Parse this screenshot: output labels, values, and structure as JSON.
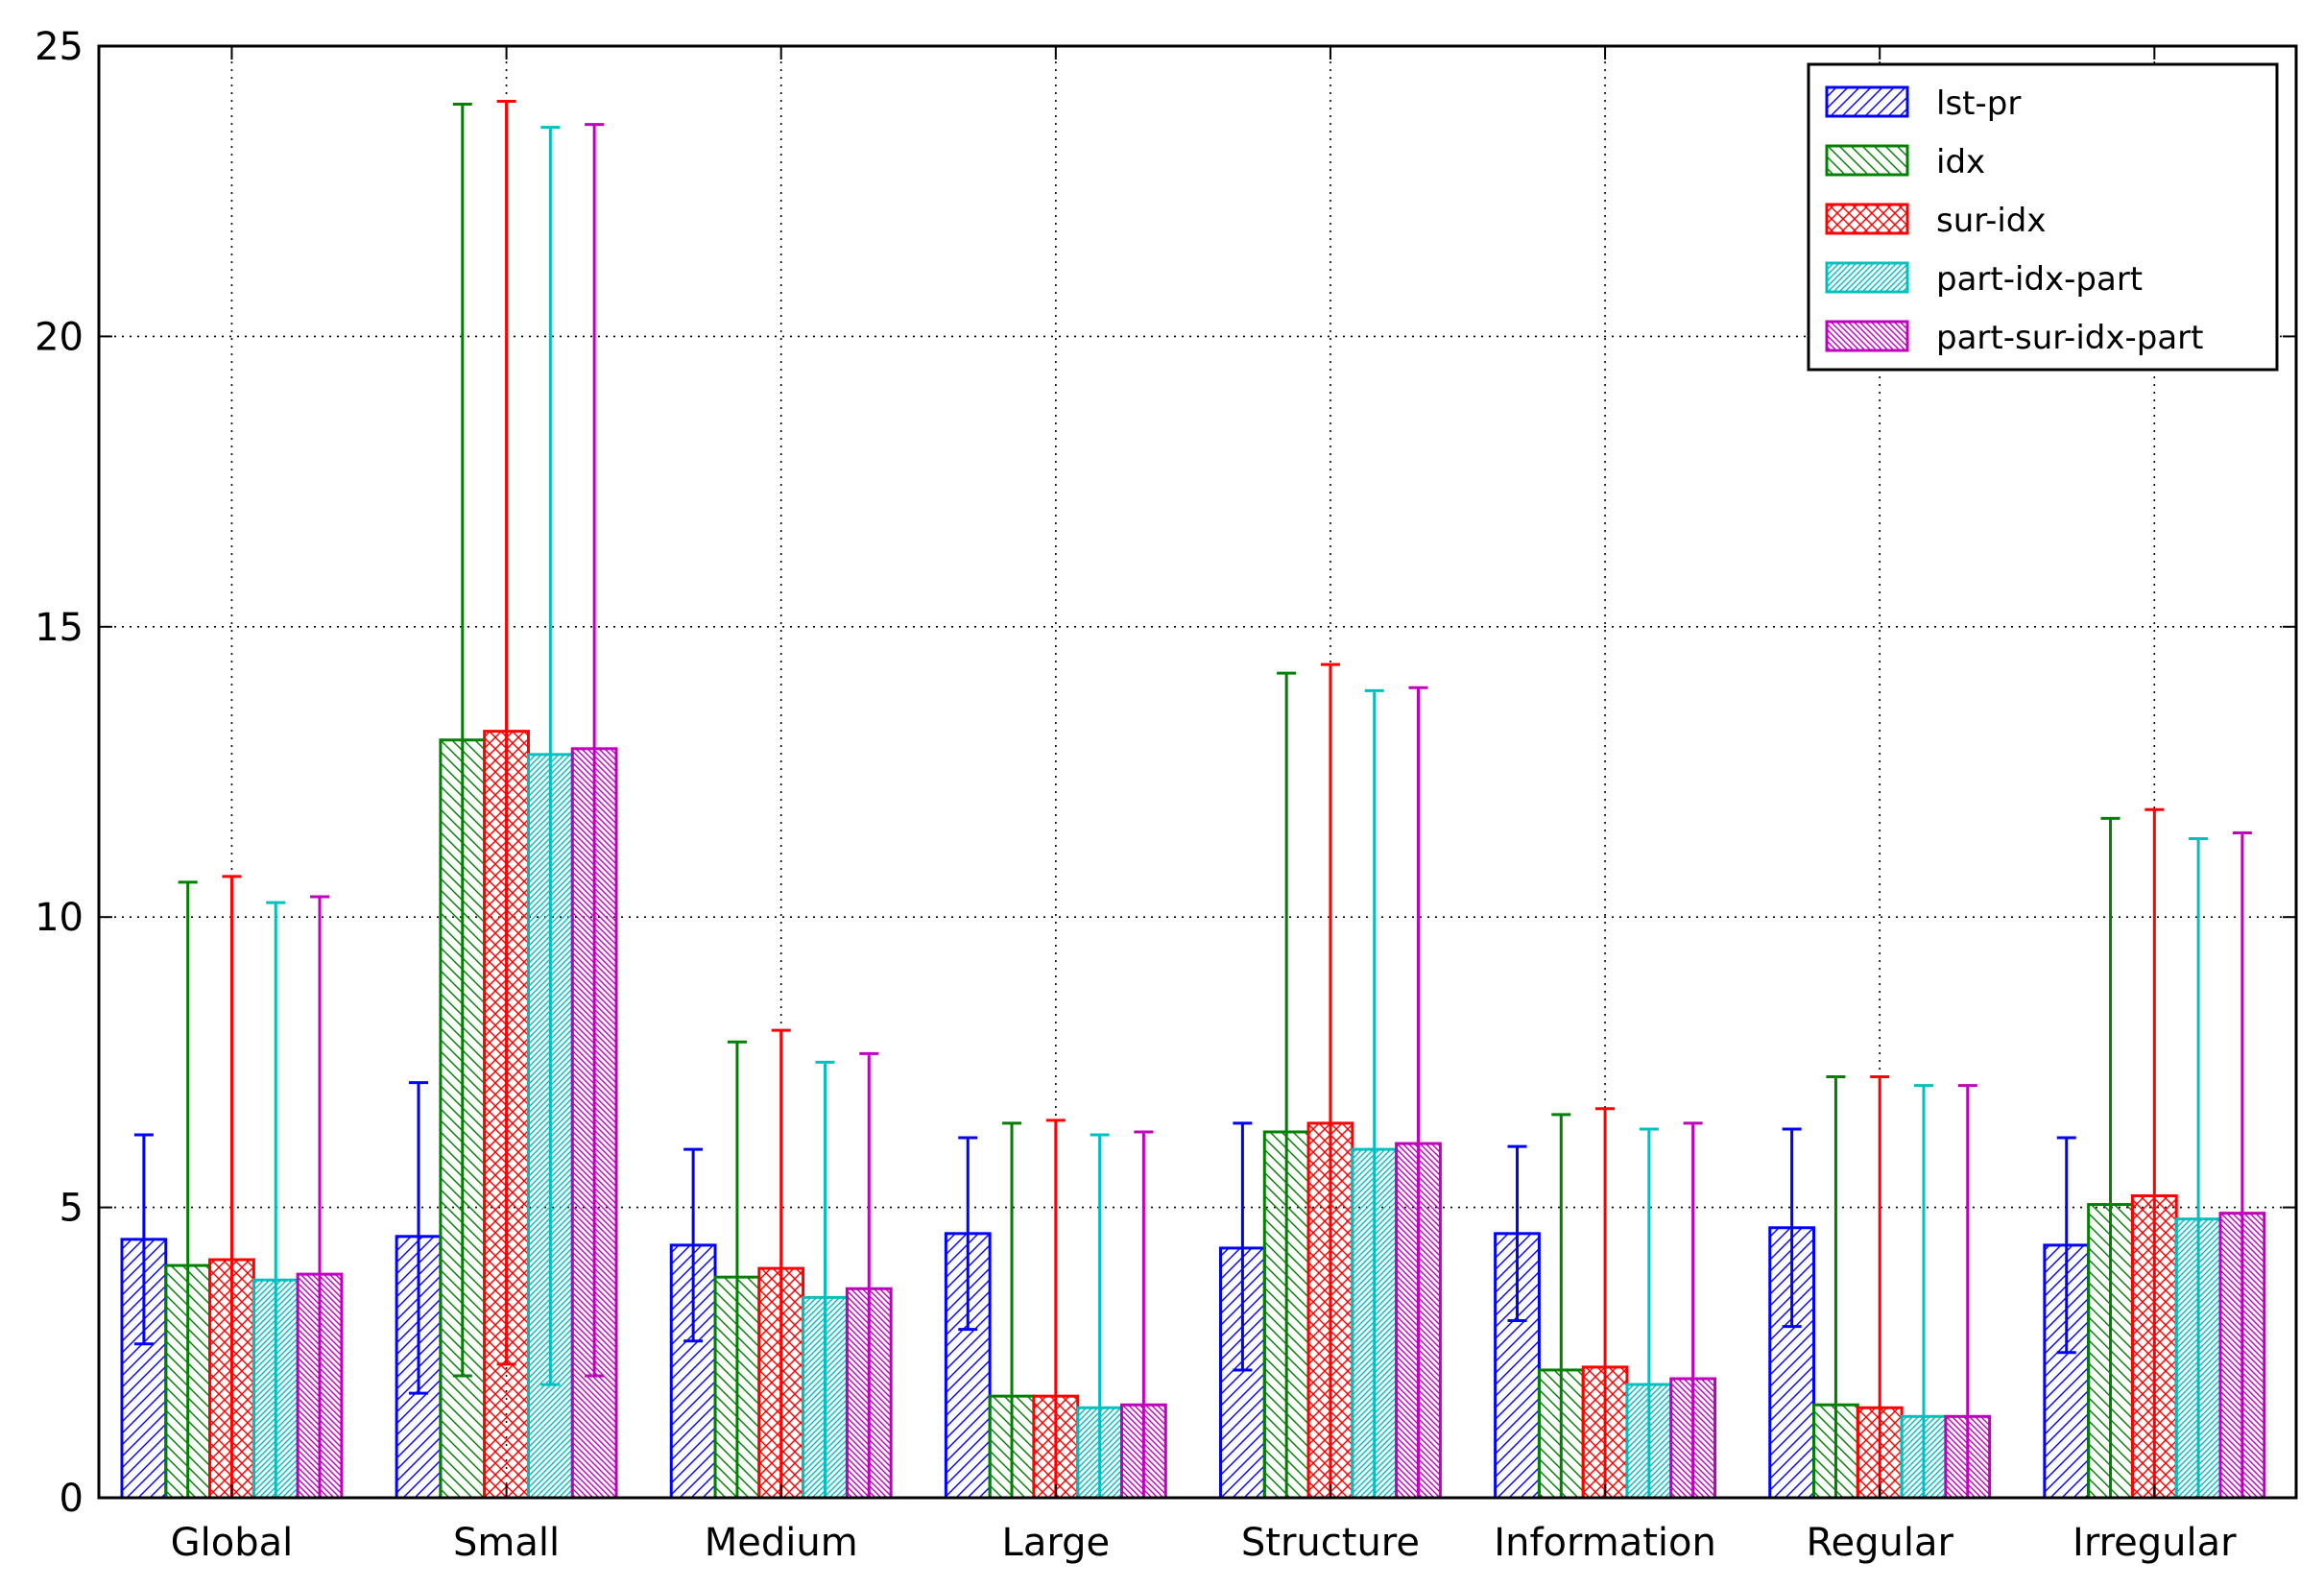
{
  "chart_data": {
    "type": "bar",
    "categories": [
      "Global",
      "Small",
      "Medium",
      "Large",
      "Structure",
      "Information",
      "Regular",
      "Irregular"
    ],
    "series": [
      {
        "name": "lst-pr",
        "color": "#0000ff",
        "hatch": "diag",
        "values": [
          4.45,
          4.5,
          4.35,
          4.55,
          4.3,
          4.55,
          4.65,
          4.35
        ],
        "err_low": [
          2.65,
          1.8,
          2.7,
          2.9,
          2.2,
          3.05,
          2.95,
          2.5
        ],
        "err_high": [
          6.25,
          7.15,
          6.0,
          6.2,
          6.45,
          6.05,
          6.35,
          6.2
        ]
      },
      {
        "name": "idx",
        "color": "#008000",
        "hatch": "back",
        "values": [
          4.0,
          13.05,
          3.8,
          1.75,
          6.3,
          2.2,
          1.6,
          5.05
        ],
        "err_low": [
          0,
          2.1,
          0,
          0,
          0,
          0,
          0,
          0
        ],
        "err_high": [
          10.6,
          24.0,
          7.85,
          6.45,
          14.2,
          6.6,
          7.25,
          11.7
        ]
      },
      {
        "name": "sur-idx",
        "color": "#ff0000",
        "hatch": "cross",
        "values": [
          4.1,
          13.2,
          3.95,
          1.75,
          6.45,
          2.25,
          1.55,
          5.2
        ],
        "err_low": [
          0,
          2.3,
          0,
          0,
          0,
          0,
          0,
          0
        ],
        "err_high": [
          10.7,
          24.05,
          8.05,
          6.5,
          14.35,
          6.7,
          7.25,
          11.85
        ]
      },
      {
        "name": "part-idx-part",
        "color": "#00bfbf",
        "hatch": "dense-diag",
        "values": [
          3.75,
          12.8,
          3.45,
          1.55,
          6.0,
          1.95,
          1.4,
          4.8
        ],
        "err_low": [
          0,
          1.95,
          0,
          0,
          0,
          0,
          0,
          0
        ],
        "err_high": [
          10.25,
          23.6,
          7.5,
          6.25,
          13.9,
          6.35,
          7.1,
          11.35
        ]
      },
      {
        "name": "part-sur-idx-part",
        "color": "#bf00bf",
        "hatch": "dense-back",
        "values": [
          3.85,
          12.9,
          3.6,
          1.6,
          6.1,
          2.05,
          1.4,
          4.9
        ],
        "err_low": [
          0,
          2.1,
          0,
          0,
          0,
          0,
          0,
          0
        ],
        "err_high": [
          10.35,
          23.65,
          7.65,
          6.3,
          13.95,
          6.45,
          7.1,
          11.45
        ]
      }
    ],
    "ylim": [
      0,
      25
    ],
    "yticks": [
      0,
      5,
      10,
      15,
      20,
      25
    ],
    "ytick_labels": [
      "0",
      "5",
      "10",
      "15",
      "20",
      "25"
    ],
    "grid": true,
    "legend_position": "top-right",
    "title": "",
    "xlabel": "",
    "ylabel": ""
  }
}
